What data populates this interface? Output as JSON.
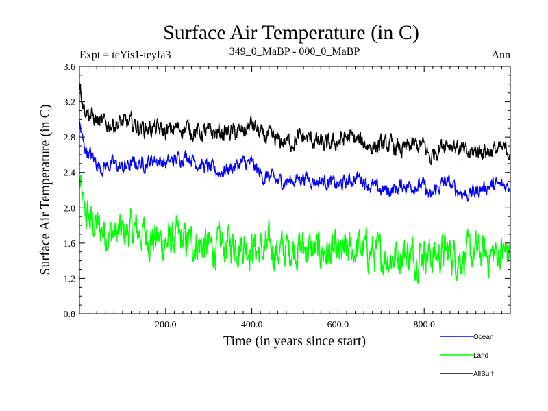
{
  "chart_data": {
    "type": "line",
    "title": "Surface Air Temperature (in C)",
    "subtitle_left": "Expt = teYis1-teyfa3",
    "subtitle_center": "349_0_MaBP - 000_0_MaBP",
    "subtitle_right": "Ann",
    "xlabel": "Time (in years since start)",
    "ylabel": "Surface Air Temperature (in C)",
    "xlim": [
      0,
      1000
    ],
    "ylim": [
      0.8,
      3.6
    ],
    "x_ticks": [
      200,
      400,
      600,
      800
    ],
    "x_tick_labels": [
      "200.0",
      "400.0",
      "600.0",
      "800.0"
    ],
    "y_ticks": [
      0.8,
      1.2,
      1.6,
      2.0,
      2.4,
      2.8,
      3.2,
      3.6
    ],
    "y_tick_labels": [
      "0.8",
      "1.2",
      "1.6",
      "2.0",
      "2.4",
      "2.8",
      "3.2",
      "3.6"
    ],
    "legend_position": "bottom-right, below plot",
    "series": [
      {
        "name": "Ocean",
        "color": "#0000ff",
        "x": [
          0,
          10,
          25,
          50,
          75,
          100,
          125,
          150,
          175,
          200,
          225,
          250,
          275,
          300,
          325,
          350,
          375,
          400,
          425,
          440,
          460,
          490,
          520,
          550,
          575,
          600,
          625,
          650,
          675,
          700,
          725,
          750,
          775,
          800,
          815,
          825,
          850,
          875,
          900,
          925,
          950,
          975,
          1000
        ],
        "values": [
          2.95,
          2.7,
          2.6,
          2.45,
          2.5,
          2.45,
          2.5,
          2.5,
          2.55,
          2.5,
          2.55,
          2.6,
          2.5,
          2.45,
          2.4,
          2.45,
          2.5,
          2.5,
          2.35,
          2.35,
          2.3,
          2.3,
          2.35,
          2.3,
          2.3,
          2.25,
          2.3,
          2.35,
          2.25,
          2.2,
          2.2,
          2.25,
          2.25,
          2.25,
          2.1,
          2.2,
          2.3,
          2.2,
          2.15,
          2.2,
          2.25,
          2.25,
          2.25
        ]
      },
      {
        "name": "Land",
        "color": "#00ff00",
        "x": [
          0,
          10,
          25,
          50,
          75,
          100,
          125,
          150,
          175,
          200,
          225,
          250,
          275,
          300,
          325,
          350,
          375,
          400,
          425,
          440,
          460,
          490,
          520,
          550,
          575,
          600,
          625,
          650,
          675,
          700,
          725,
          750,
          775,
          800,
          825,
          850,
          875,
          900,
          925,
          950,
          975,
          1000
        ],
        "values": [
          2.3,
          1.95,
          1.85,
          1.75,
          1.7,
          1.7,
          1.75,
          1.7,
          1.65,
          1.6,
          1.65,
          1.6,
          1.6,
          1.55,
          1.55,
          1.6,
          1.6,
          1.55,
          1.5,
          1.55,
          1.5,
          1.55,
          1.55,
          1.5,
          1.5,
          1.45,
          1.5,
          1.55,
          1.5,
          1.45,
          1.45,
          1.5,
          1.45,
          1.5,
          1.45,
          1.5,
          1.45,
          1.45,
          1.5,
          1.45,
          1.5,
          1.5
        ]
      },
      {
        "name": "AllSurf",
        "color": "#000000",
        "x": [
          0,
          10,
          25,
          50,
          75,
          100,
          125,
          150,
          175,
          200,
          225,
          250,
          275,
          300,
          325,
          350,
          375,
          400,
          425,
          440,
          460,
          490,
          520,
          550,
          575,
          600,
          625,
          650,
          675,
          700,
          725,
          750,
          775,
          800,
          815,
          825,
          850,
          875,
          900,
          925,
          950,
          975,
          1000
        ],
        "values": [
          3.45,
          3.15,
          3.05,
          2.95,
          2.95,
          2.95,
          2.95,
          2.9,
          2.9,
          2.85,
          2.9,
          2.9,
          2.85,
          2.85,
          2.85,
          2.85,
          2.85,
          2.95,
          2.8,
          2.8,
          2.75,
          2.75,
          2.8,
          2.75,
          2.7,
          2.75,
          2.8,
          2.75,
          2.7,
          2.7,
          2.7,
          2.65,
          2.7,
          2.7,
          2.55,
          2.65,
          2.75,
          2.7,
          2.6,
          2.65,
          2.65,
          2.65,
          2.65
        ]
      }
    ]
  }
}
